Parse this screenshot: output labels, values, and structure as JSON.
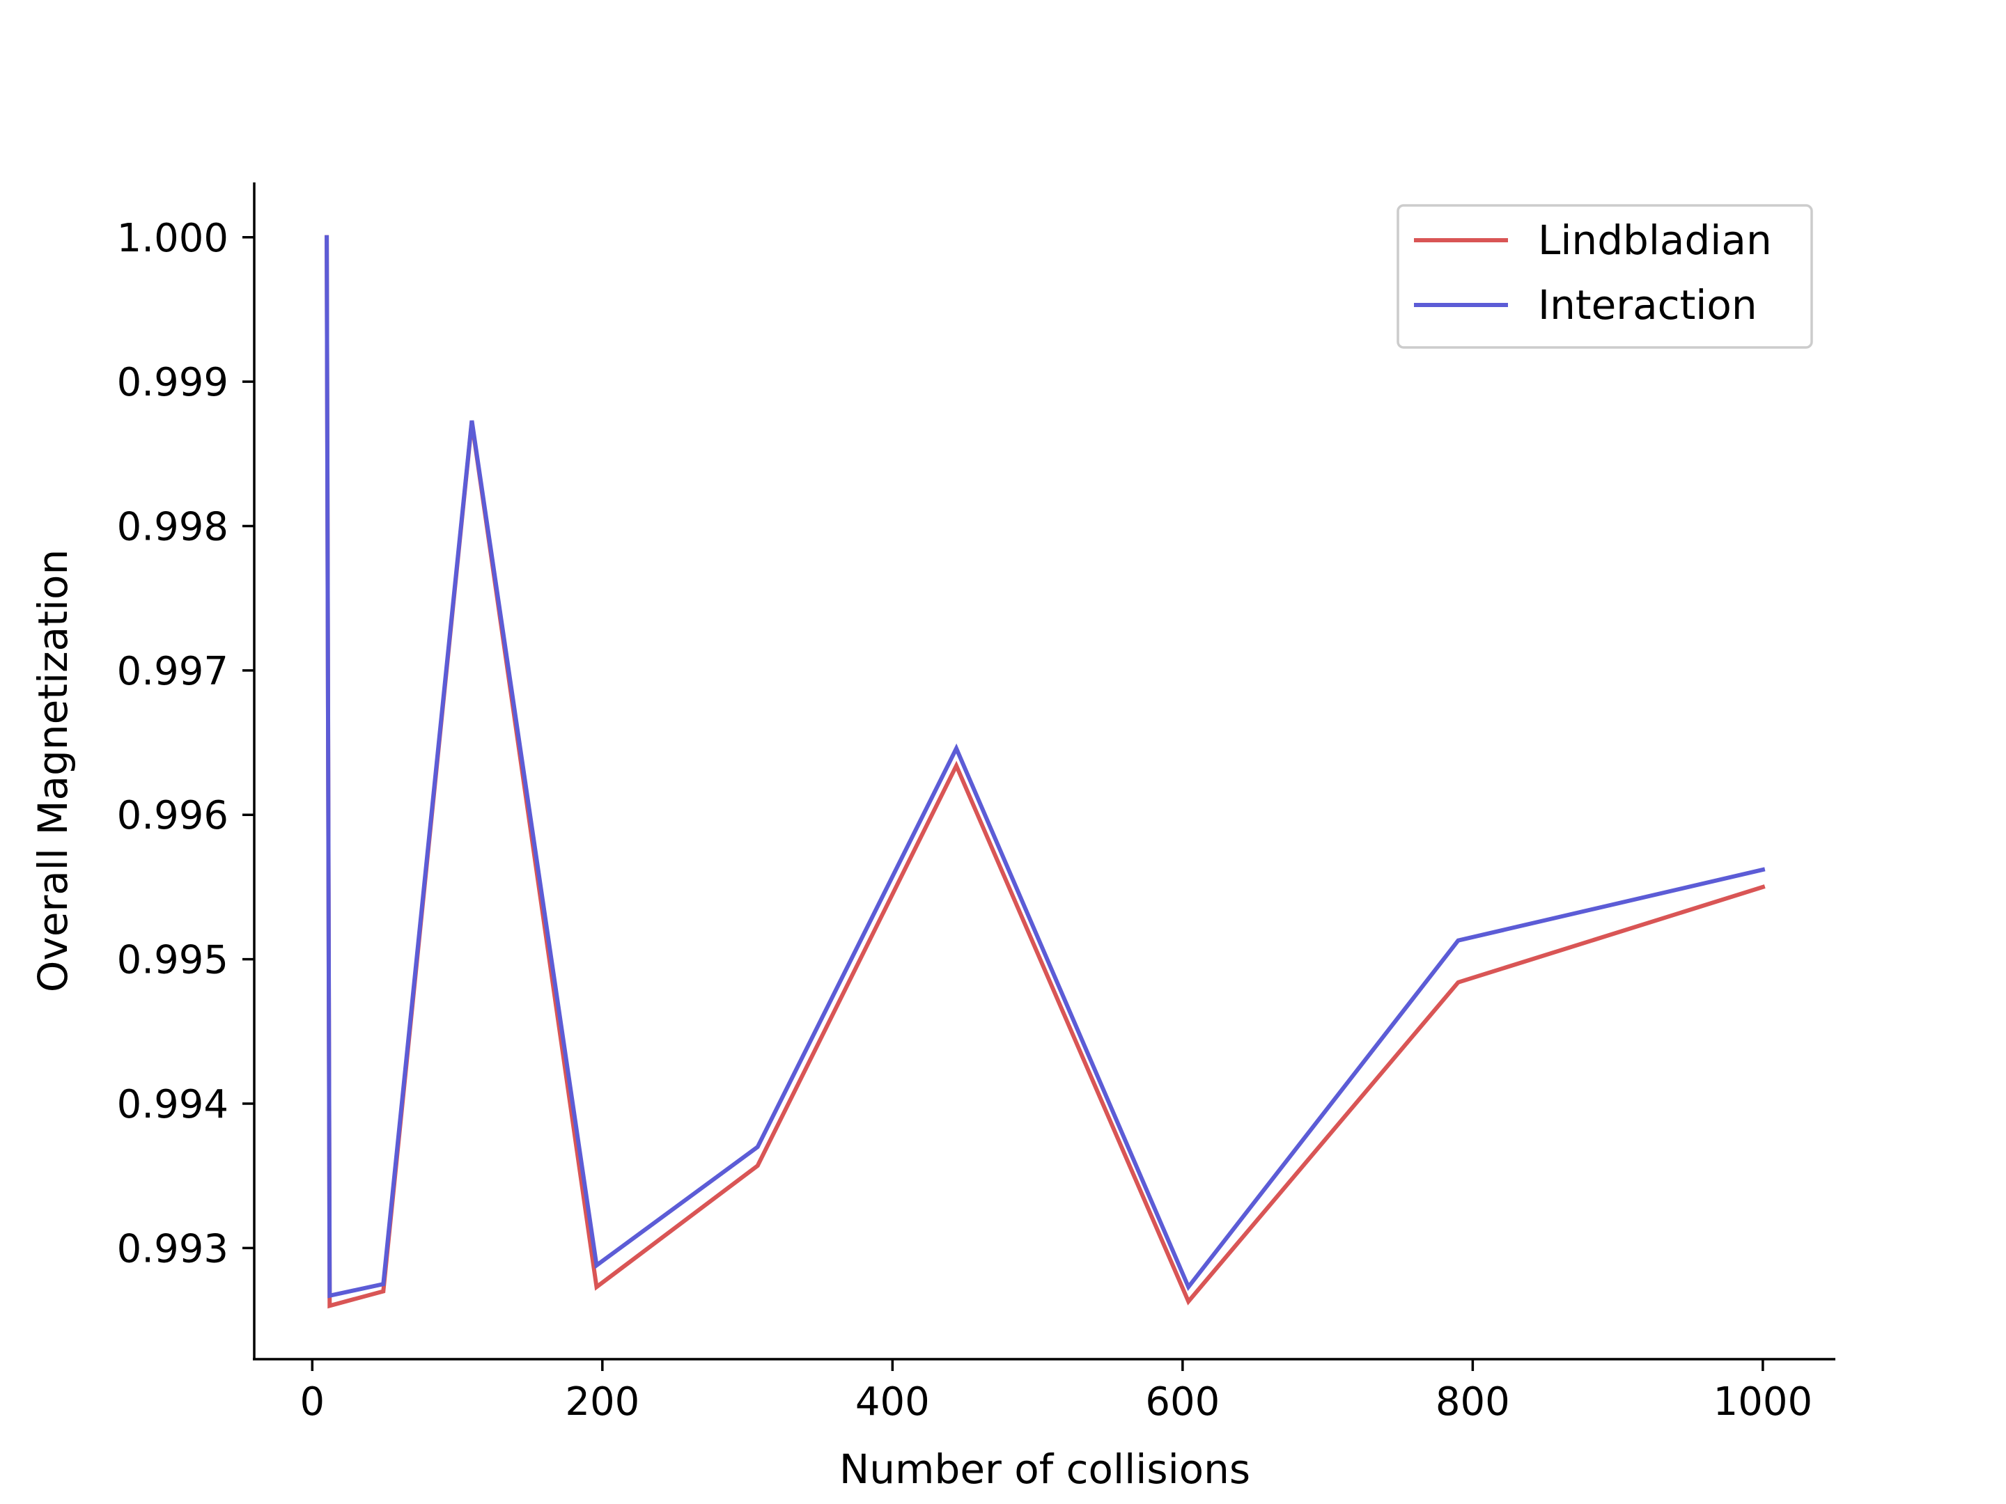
{
  "chart_data": {
    "type": "line",
    "title": "",
    "xlabel": "Number of collisions",
    "ylabel": "Overall Magnetization",
    "xlim": [
      -40,
      1050
    ],
    "ylim": [
      0.99223,
      1.00038
    ],
    "xticks": [
      0,
      200,
      400,
      600,
      800,
      1000
    ],
    "xtick_labels": [
      "0",
      "200",
      "400",
      "600",
      "800",
      "1000"
    ],
    "yticks": [
      0.993,
      0.994,
      0.995,
      0.996,
      0.997,
      0.998,
      0.999,
      1.0
    ],
    "ytick_labels": [
      "0.993",
      "0.994",
      "0.995",
      "0.996",
      "0.997",
      "0.998",
      "0.999",
      "1.000"
    ],
    "grid": false,
    "legend_position": "top-right",
    "series": [
      {
        "name": "Lindbladian",
        "color": "#d95555",
        "x": [
          10,
          12,
          49,
          110,
          196,
          307,
          444,
          604,
          790,
          1000
        ],
        "y": [
          1.0,
          0.9926,
          0.9927,
          0.99872,
          0.99273,
          0.99357,
          0.99634,
          0.99263,
          0.99484,
          0.9955
        ]
      },
      {
        "name": "Interaction",
        "color": "#5c5cd6",
        "x": [
          10,
          12,
          49,
          110,
          196,
          307,
          444,
          604,
          790,
          1000
        ],
        "y": [
          1.0,
          0.99267,
          0.99275,
          0.99873,
          0.99288,
          0.9937,
          0.99646,
          0.99273,
          0.99513,
          0.99562
        ]
      }
    ]
  }
}
